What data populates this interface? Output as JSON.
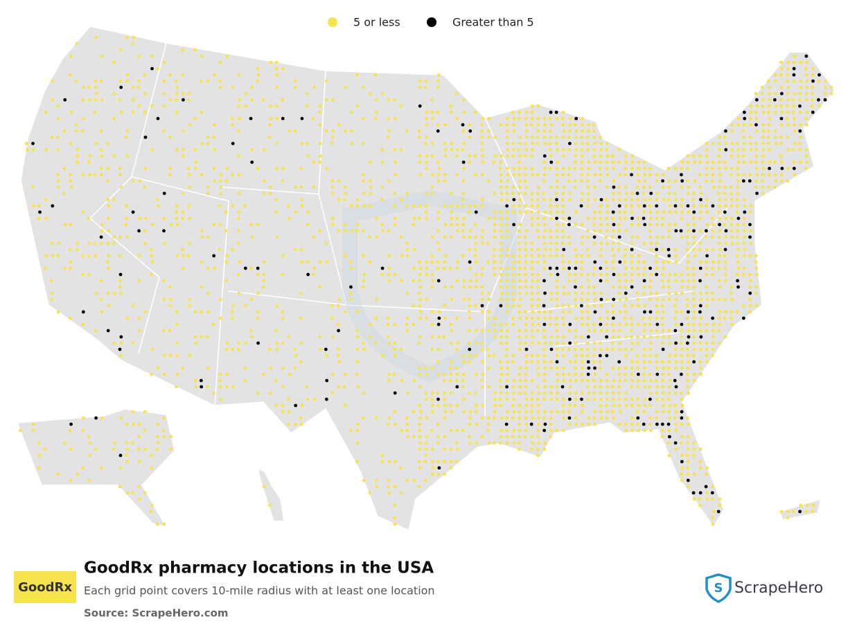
{
  "legend": [
    {
      "label": "5 or less",
      "color": "#f7e34f"
    },
    {
      "label": "Greater than 5",
      "color": "#000000"
    }
  ],
  "title": "GoodRx pharmacy locations in the USA",
  "subtitle": "Each grid point covers 10-mile radius with at least one location",
  "source": "Source: ScrapeHero.com",
  "brand": "GoodRx",
  "publisher": "ScrapeHero"
}
